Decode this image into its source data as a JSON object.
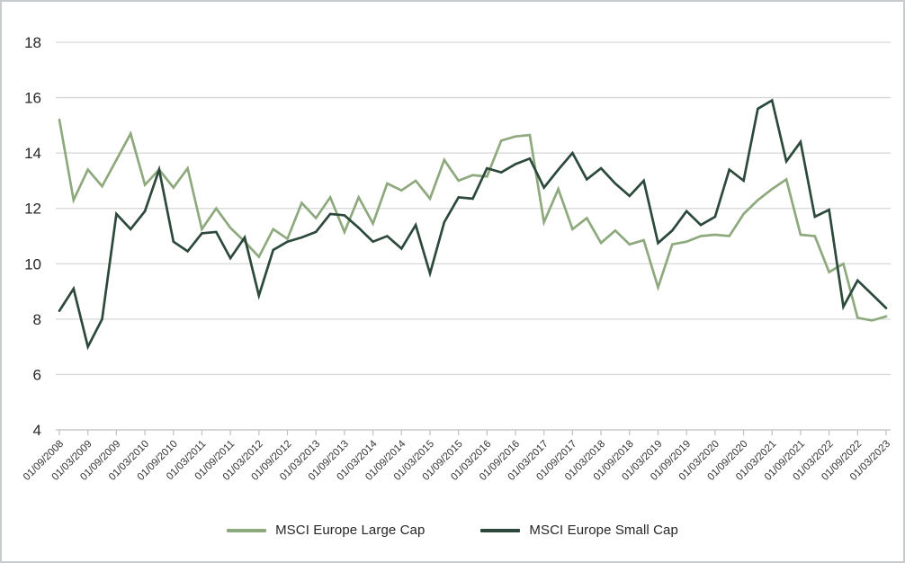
{
  "chart_data": {
    "type": "line",
    "title": "",
    "xlabel": "",
    "ylabel": "",
    "ylim": [
      4,
      18
    ],
    "y_ticks": [
      4,
      6,
      8,
      10,
      12,
      14,
      16,
      18
    ],
    "grid": true,
    "legend_position": "bottom",
    "x_labels": [
      "01/09/2008",
      "01/03/2009",
      "01/09/2009",
      "01/03/2010",
      "01/09/2010",
      "01/03/2011",
      "01/09/2011",
      "01/03/2012",
      "01/09/2012",
      "01/03/2013",
      "01/09/2013",
      "01/03/2014",
      "01/09/2014",
      "01/03/2015",
      "01/09/2015",
      "01/03/2016",
      "01/09/2016",
      "01/03/2017",
      "01/09/2017",
      "01/03/2018",
      "01/09/2018",
      "01/03/2019",
      "01/09/2019",
      "01/03/2020",
      "01/09/2020",
      "01/03/2021",
      "01/09/2021",
      "01/03/2022",
      "01/09/2022",
      "01/03/2023"
    ],
    "x_labels_every_n_points": 2,
    "series": [
      {
        "name": "MSCI Europe Large Cap",
        "color": "#8EA97D",
        "values": [
          15.2,
          12.3,
          13.4,
          12.8,
          13.75,
          14.7,
          12.85,
          13.4,
          12.75,
          13.45,
          11.25,
          12.0,
          11.3,
          10.8,
          10.25,
          11.25,
          10.9,
          12.2,
          11.65,
          12.4,
          11.15,
          12.4,
          11.45,
          12.9,
          12.65,
          13.0,
          12.35,
          13.75,
          13.0,
          13.2,
          13.15,
          14.45,
          14.6,
          14.65,
          11.5,
          12.7,
          11.25,
          11.65,
          10.75,
          11.2,
          10.7,
          10.85,
          9.15,
          10.7,
          10.8,
          11.0,
          11.05,
          11.0,
          11.8,
          12.3,
          12.7,
          13.05,
          11.05,
          11.0,
          9.7,
          10.0,
          8.05,
          7.95,
          8.1
        ]
      },
      {
        "name": "MSCI Europe Small Cap",
        "color": "#2C493B",
        "values": [
          8.3,
          9.1,
          7.0,
          8.0,
          11.8,
          11.25,
          11.9,
          13.4,
          10.8,
          10.45,
          11.1,
          11.15,
          10.2,
          10.95,
          8.85,
          10.5,
          10.8,
          10.95,
          11.15,
          11.8,
          11.75,
          11.3,
          10.8,
          11.0,
          10.55,
          11.4,
          9.65,
          11.5,
          12.4,
          12.35,
          13.45,
          13.3,
          13.6,
          13.8,
          12.75,
          13.4,
          14.0,
          13.05,
          13.45,
          12.9,
          12.45,
          13.0,
          10.75,
          11.2,
          11.9,
          11.4,
          11.7,
          13.4,
          13.0,
          15.6,
          15.9,
          13.7,
          14.4,
          11.7,
          11.95,
          8.45,
          9.4,
          8.9,
          8.4
        ]
      }
    ],
    "colors": {
      "background": "#ffffff",
      "gridline": "#d6d6d6",
      "axis_line": "#bfbfbf",
      "tick_label": "#333333",
      "y_label": "#262626"
    }
  }
}
